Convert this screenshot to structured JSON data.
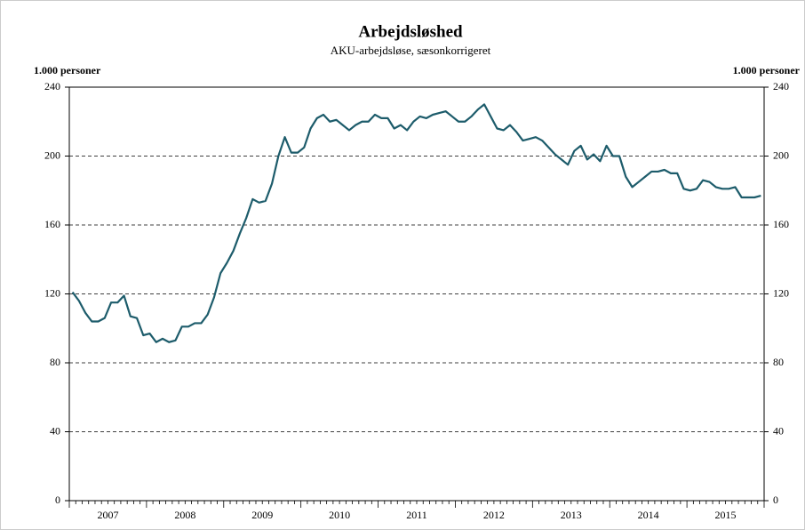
{
  "chart_data": {
    "type": "line",
    "title": "Arbejdsløshed",
    "subtitle": "AKU-arbejdsløse, sæsonkorrigeret",
    "ylabel": "1.000 personer",
    "y2label": "1.000 personer",
    "categories": [
      null,
      null,
      null,
      null,
      null,
      "2007",
      null,
      null,
      null,
      null,
      null,
      null,
      null,
      null,
      null,
      null,
      null,
      "2008",
      null,
      null,
      null,
      null,
      null,
      null,
      null,
      null,
      null,
      null,
      null,
      "2009",
      null,
      null,
      null,
      null,
      null,
      null,
      null,
      null,
      null,
      null,
      null,
      "2010",
      null,
      null,
      null,
      null,
      null,
      null,
      null,
      null,
      null,
      null,
      null,
      "2011",
      null,
      null,
      null,
      null,
      null,
      null,
      null,
      null,
      null,
      null,
      null,
      "2012",
      null,
      null,
      null,
      null,
      null,
      null,
      null,
      null,
      null,
      null,
      null,
      "2013",
      null,
      null,
      null,
      null,
      null,
      null,
      null,
      null,
      null,
      null,
      null,
      "2014",
      null,
      null,
      null,
      null,
      null,
      null,
      null,
      null,
      null,
      null,
      null,
      "2015",
      null,
      null,
      null,
      null,
      null,
      null
    ],
    "series": [
      {
        "color": "#1d5c6b",
        "values": [
          121,
          116,
          109,
          104,
          104,
          106,
          115,
          115,
          119,
          107,
          106,
          96,
          97,
          92,
          94,
          92,
          93,
          101,
          101,
          103,
          103,
          108,
          118,
          132,
          138,
          145,
          155,
          164,
          175,
          173,
          174,
          184,
          200,
          211,
          202,
          202,
          205,
          216,
          222,
          224,
          220,
          221,
          218,
          215,
          218,
          220,
          220,
          224,
          222,
          222,
          216,
          218,
          215,
          220,
          223,
          222,
          224,
          225,
          226,
          223,
          220,
          220,
          223,
          227,
          230,
          223,
          216,
          215,
          218,
          214,
          209,
          210,
          211,
          209,
          205,
          201,
          198,
          195,
          203,
          206,
          198,
          201,
          197,
          206,
          200,
          200,
          188,
          182,
          185,
          188,
          191,
          191,
          192,
          190,
          190,
          181,
          180,
          181,
          186,
          185,
          182,
          181,
          181,
          182,
          176,
          176,
          176,
          177
        ]
      }
    ],
    "ylim": [
      0,
      240
    ],
    "yticks": [
      0,
      40,
      80,
      120,
      160,
      200,
      240
    ],
    "y2lim": [
      0,
      240
    ],
    "y2ticks": [
      0,
      40,
      80,
      120,
      160,
      200,
      240
    ],
    "grid": true
  }
}
